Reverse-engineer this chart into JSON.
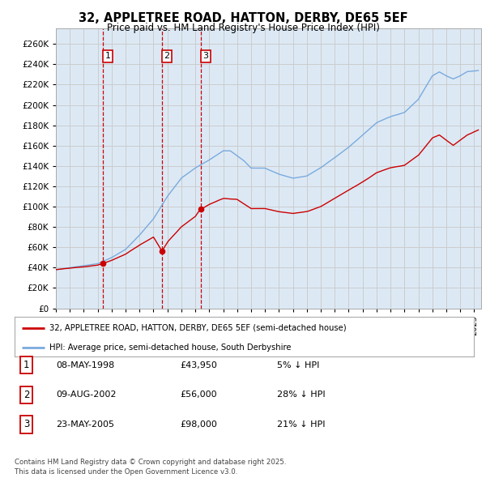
{
  "title": "32, APPLETREE ROAD, HATTON, DERBY, DE65 5EF",
  "subtitle": "Price paid vs. HM Land Registry's House Price Index (HPI)",
  "xlim_start": 1995.0,
  "xlim_end": 2025.5,
  "ylim": [
    0,
    275000
  ],
  "yticks": [
    0,
    20000,
    40000,
    60000,
    80000,
    100000,
    120000,
    140000,
    160000,
    180000,
    200000,
    220000,
    240000,
    260000
  ],
  "background_color": "#ffffff",
  "grid_color": "#cccccc",
  "plot_bg_color": "#dce9f5",
  "hpi_line_color": "#7aaadd",
  "price_line_color": "#cc0000",
  "transaction_box_color": "#cc0000",
  "transactions": [
    {
      "label": "1",
      "date_num": 1998.36,
      "price": 43950
    },
    {
      "label": "2",
      "date_num": 2002.61,
      "price": 56000
    },
    {
      "label": "3",
      "date_num": 2005.39,
      "price": 98000
    }
  ],
  "legend_property_label": "32, APPLETREE ROAD, HATTON, DERBY, DE65 5EF (semi-detached house)",
  "legend_hpi_label": "HPI: Average price, semi-detached house, South Derbyshire",
  "row_data": [
    [
      "1",
      "08-MAY-1998",
      "£43,950",
      "5% ↓ HPI"
    ],
    [
      "2",
      "09-AUG-2002",
      "£56,000",
      "28% ↓ HPI"
    ],
    [
      "3",
      "23-MAY-2005",
      "£98,000",
      "21% ↓ HPI"
    ]
  ],
  "footer_text": "Contains HM Land Registry data © Crown copyright and database right 2025.\nThis data is licensed under the Open Government Licence v3.0.",
  "dashed_line_color": "#cc0000"
}
